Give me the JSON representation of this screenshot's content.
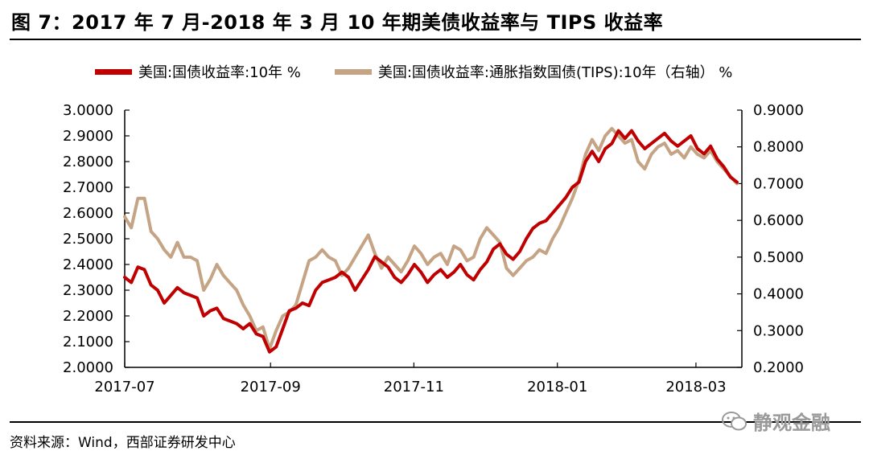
{
  "figure": {
    "title": "图 7：2017 年 7 月-2018 年 3 月 10 年期美债收益率与 TIPS 收益率",
    "source": "资料来源：Wind，西部证券研发中心",
    "watermark": "静观金融"
  },
  "legend": {
    "series1": "美国:国债收益率:10年 %",
    "series2": "美国:国债收益率:通胀指数国债(TIPS):10年（右轴） %"
  },
  "chart_data": {
    "type": "line",
    "x_ticks": [
      "2017-07",
      "2017-09",
      "2017-11",
      "2018-01",
      "2018-03"
    ],
    "x_domain": [
      0,
      37.5
    ],
    "x_unit": "weeks since 2017-07-01",
    "y_left": {
      "range": [
        2.0,
        3.0
      ],
      "ticks": [
        "2.0000",
        "2.1000",
        "2.2000",
        "2.3000",
        "2.4000",
        "2.5000",
        "2.6000",
        "2.7000",
        "2.8000",
        "2.9000",
        "3.0000"
      ]
    },
    "y_right": {
      "range": [
        0.2,
        0.9
      ],
      "ticks": [
        "0.2000",
        "0.3000",
        "0.4000",
        "0.5000",
        "0.6000",
        "0.7000",
        "0.8000",
        "0.9000"
      ]
    },
    "series": [
      {
        "name": "美国:国债收益率:10年 %",
        "axis": "left",
        "color": "#c00000",
        "x": [
          0.0,
          0.4,
          0.8,
          1.2,
          1.6,
          2.0,
          2.4,
          2.8,
          3.2,
          3.6,
          4.0,
          4.4,
          4.8,
          5.2,
          5.6,
          6.0,
          6.4,
          6.8,
          7.2,
          7.6,
          8.0,
          8.4,
          8.8,
          9.2,
          9.6,
          10.0,
          10.4,
          10.8,
          11.2,
          11.6,
          12.0,
          12.4,
          12.8,
          13.2,
          13.6,
          14.0,
          14.4,
          14.8,
          15.2,
          15.6,
          16.0,
          16.4,
          16.8,
          17.2,
          17.6,
          18.0,
          18.4,
          18.8,
          19.2,
          19.6,
          20.0,
          20.4,
          20.8,
          21.2,
          21.6,
          22.0,
          22.4,
          22.8,
          23.2,
          23.6,
          24.0,
          24.4,
          24.8,
          25.2,
          25.6,
          26.0,
          26.4,
          26.8,
          27.2,
          27.6,
          28.0,
          28.4,
          28.8,
          29.2,
          29.6,
          30.0,
          30.4,
          30.8,
          31.2,
          31.6,
          32.0,
          32.4,
          32.8,
          33.2,
          33.6,
          34.0,
          34.4,
          34.8,
          35.2,
          35.6,
          36.0,
          36.4,
          36.8,
          37.2
        ],
        "values": [
          2.35,
          2.33,
          2.39,
          2.38,
          2.32,
          2.3,
          2.25,
          2.28,
          2.31,
          2.29,
          2.28,
          2.27,
          2.2,
          2.22,
          2.23,
          2.19,
          2.18,
          2.17,
          2.15,
          2.17,
          2.13,
          2.12,
          2.06,
          2.08,
          2.15,
          2.22,
          2.23,
          2.25,
          2.24,
          2.3,
          2.33,
          2.34,
          2.35,
          2.37,
          2.35,
          2.3,
          2.34,
          2.38,
          2.43,
          2.41,
          2.39,
          2.35,
          2.33,
          2.36,
          2.4,
          2.37,
          2.33,
          2.36,
          2.38,
          2.35,
          2.37,
          2.4,
          2.36,
          2.34,
          2.38,
          2.41,
          2.46,
          2.48,
          2.44,
          2.42,
          2.45,
          2.5,
          2.54,
          2.56,
          2.57,
          2.6,
          2.63,
          2.66,
          2.7,
          2.72,
          2.8,
          2.84,
          2.8,
          2.85,
          2.87,
          2.92,
          2.89,
          2.92,
          2.88,
          2.85,
          2.87,
          2.89,
          2.91,
          2.88,
          2.86,
          2.88,
          2.9,
          2.85,
          2.83,
          2.86,
          2.81,
          2.78,
          2.74,
          2.72
        ]
      },
      {
        "name": "美国:国债收益率:通胀指数国债(TIPS):10年（右轴） %",
        "axis": "right",
        "color": "#c4a484",
        "x": [
          0.0,
          0.4,
          0.8,
          1.2,
          1.6,
          2.0,
          2.4,
          2.8,
          3.2,
          3.6,
          4.0,
          4.4,
          4.8,
          5.2,
          5.6,
          6.0,
          6.4,
          6.8,
          7.2,
          7.6,
          8.0,
          8.4,
          8.8,
          9.2,
          9.6,
          10.0,
          10.4,
          10.8,
          11.2,
          11.6,
          12.0,
          12.4,
          12.8,
          13.2,
          13.6,
          14.0,
          14.4,
          14.8,
          15.2,
          15.6,
          16.0,
          16.4,
          16.8,
          17.2,
          17.6,
          18.0,
          18.4,
          18.8,
          19.2,
          19.6,
          20.0,
          20.4,
          20.8,
          21.2,
          21.6,
          22.0,
          22.4,
          22.8,
          23.2,
          23.6,
          24.0,
          24.4,
          24.8,
          25.2,
          25.6,
          26.0,
          26.4,
          26.8,
          27.2,
          27.6,
          28.0,
          28.4,
          28.8,
          29.2,
          29.6,
          30.0,
          30.4,
          30.8,
          31.2,
          31.6,
          32.0,
          32.4,
          32.8,
          33.2,
          33.6,
          34.0,
          34.4,
          34.8,
          35.2,
          35.6,
          36.0,
          36.4,
          36.8,
          37.2
        ],
        "values": [
          0.61,
          0.58,
          0.66,
          0.66,
          0.57,
          0.55,
          0.52,
          0.5,
          0.54,
          0.5,
          0.5,
          0.49,
          0.41,
          0.44,
          0.48,
          0.45,
          0.43,
          0.41,
          0.37,
          0.34,
          0.3,
          0.31,
          0.25,
          0.3,
          0.34,
          0.35,
          0.37,
          0.43,
          0.49,
          0.5,
          0.52,
          0.5,
          0.49,
          0.45,
          0.47,
          0.5,
          0.53,
          0.56,
          0.51,
          0.47,
          0.5,
          0.48,
          0.46,
          0.49,
          0.53,
          0.51,
          0.48,
          0.5,
          0.51,
          0.48,
          0.53,
          0.52,
          0.49,
          0.5,
          0.55,
          0.58,
          0.56,
          0.54,
          0.47,
          0.45,
          0.47,
          0.49,
          0.5,
          0.52,
          0.51,
          0.55,
          0.58,
          0.62,
          0.66,
          0.71,
          0.78,
          0.82,
          0.79,
          0.83,
          0.85,
          0.83,
          0.81,
          0.82,
          0.76,
          0.74,
          0.78,
          0.8,
          0.81,
          0.78,
          0.79,
          0.77,
          0.8,
          0.78,
          0.77,
          0.79,
          0.76,
          0.74,
          0.72,
          0.7
        ]
      }
    ]
  }
}
